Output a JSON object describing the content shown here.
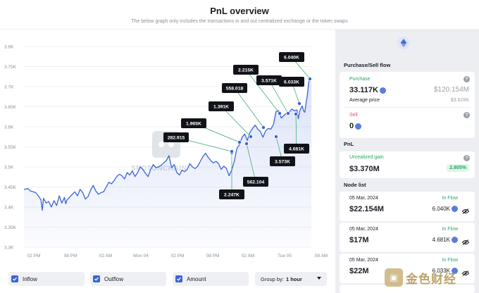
{
  "header": {
    "title": "PnL overview",
    "subtitle": "The below graph only includes the transactions in and out centralized exchange or the token swaps"
  },
  "chart_data": {
    "type": "line",
    "y_ticks": [
      "3.8K",
      "3.75K",
      "3.7K",
      "3.65K",
      "3.6K",
      "3.55K",
      "3.5K",
      "3.45K",
      "3.4K",
      "3.35K",
      "3.3K"
    ],
    "ylim": [
      3300,
      3800
    ],
    "x_ticks": [
      "02 PM",
      "08 PM",
      "02 AM",
      "Mon 04",
      "02 PM",
      "08 PM",
      "02 AM",
      "Tue 05",
      "08 AM"
    ],
    "series": [
      {
        "color": "#3b63d4",
        "x": [
          0,
          6,
          10,
          14,
          18,
          22,
          26,
          28,
          30,
          34,
          38,
          42,
          46,
          50,
          54,
          58,
          62,
          64,
          66,
          70,
          74,
          78,
          82,
          86,
          90,
          94,
          98,
          102,
          106,
          110,
          114,
          118,
          122,
          126,
          130,
          134,
          138,
          142,
          146,
          150,
          154,
          158,
          162,
          166,
          170,
          174,
          178,
          182,
          186,
          190,
          194,
          198,
          202,
          206,
          210,
          214,
          218,
          222,
          226,
          230,
          234,
          238,
          242,
          246,
          250,
          254,
          258,
          262,
          266,
          270,
          274,
          278,
          282,
          286,
          290,
          294,
          298,
          302,
          306,
          310,
          314,
          318,
          322,
          326,
          330,
          334,
          338,
          342,
          346,
          350,
          354,
          358,
          362,
          366,
          370,
          374,
          378,
          382,
          386,
          390,
          394,
          398,
          402,
          406,
          410,
          414,
          418,
          420,
          422,
          424,
          426,
          428,
          430,
          432,
          434,
          436,
          438,
          440
        ],
        "y": [
          3444,
          3446,
          3440,
          3438,
          3436,
          3428,
          3418,
          3392,
          3422,
          3410,
          3414,
          3400,
          3416,
          3404,
          3428,
          3410,
          3424,
          3408,
          3418,
          3425,
          3432,
          3438,
          3428,
          3444,
          3436,
          3420,
          3426,
          3442,
          3454,
          3440,
          3432,
          3436,
          3438,
          3450,
          3462,
          3458,
          3466,
          3476,
          3482,
          3478,
          3470,
          3486,
          3480,
          3490,
          3476,
          3486,
          3500,
          3494,
          3484,
          3476,
          3494,
          3506,
          3498,
          3500,
          3504,
          3510,
          3516,
          3528,
          3498,
          3506,
          3486,
          3480,
          3492,
          3488,
          3494,
          3508,
          3500,
          3496,
          3502,
          3514,
          3526,
          3534,
          3524,
          3516,
          3510,
          3514,
          3508,
          3494,
          3502,
          3496,
          3478,
          3492,
          3514,
          3546,
          3556,
          3574,
          3582,
          3566,
          3586,
          3596,
          3604,
          3594,
          3588,
          3574,
          3590,
          3596,
          3594,
          3606,
          3638,
          3640,
          3622,
          3628,
          3634,
          3636,
          3644,
          3640,
          3642,
          3620,
          3638,
          3646,
          3652,
          3640,
          3636,
          3660,
          3680,
          3712,
          3722,
          3722
        ]
      }
    ],
    "watermark": "SPOTONCHAIN",
    "annotations": [
      "2.247K",
      "282.915",
      "1.965K",
      "1.391K",
      "558.018",
      "2.215K",
      "3.571K",
      "6.040K",
      "6.033K",
      "562.104",
      "3.573K",
      "4.681K"
    ]
  },
  "toolbar": {
    "inflow_label": "Inflow",
    "outflow_label": "Outflow",
    "amount_label": "Amount",
    "groupby_label": "Group by:",
    "groupby_value": "1 hour"
  },
  "panel": {
    "purchase_sell_title": "Purchase/Sell flow",
    "purchase_label": "Purchase",
    "purchase_amount": "33.117K",
    "purchase_usd": "$120.154M",
    "avg_price_label": "Average price",
    "avg_price_value": "$3.628K",
    "sell_label": "Sell",
    "sell_amount": "0",
    "pnl_title": "PnL",
    "unrealized_label": "Unrealized gain",
    "unrealized_value": "$3.370M",
    "unrealized_pct": "2.805%",
    "node_list_title": "Node list",
    "nodes": [
      {
        "date": "05 Mar, 2024",
        "flow": "In Flow",
        "usd": "$22.154M",
        "amount": "6.040K"
      },
      {
        "date": "05 Mar, 2024",
        "flow": "In Flow",
        "usd": "$17M",
        "amount": "4.681K"
      },
      {
        "date": "05 Mar, 2024",
        "flow": "In Flow",
        "usd": "$22M",
        "amount": "6.033K"
      }
    ]
  },
  "colors": {
    "accent": "#3b63d4",
    "positive": "#27a567",
    "negative": "#e05353"
  }
}
